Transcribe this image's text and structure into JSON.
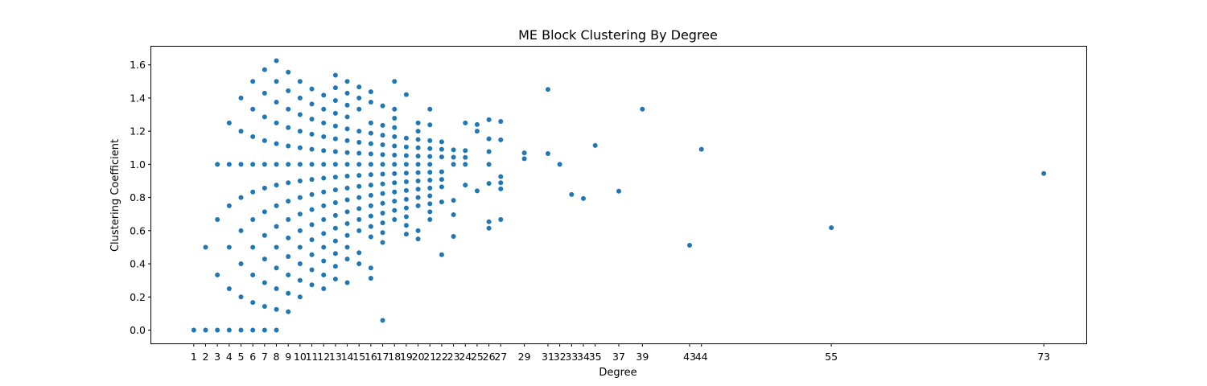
{
  "chart_data": {
    "type": "scatter",
    "title": "ME Block Clustering By Degree",
    "xlabel": "Degree",
    "ylabel": "Clustering Coefficient",
    "xlim": [
      -2.6,
      76.6
    ],
    "ylim": [
      -0.08,
      1.71
    ],
    "grid": false,
    "legend": "none",
    "marker_color": "#1f77b4",
    "xticks": [
      "1",
      "2",
      "3",
      "4",
      "5",
      "6",
      "7",
      "8",
      "9",
      "10",
      "11",
      "12",
      "13",
      "14",
      "15",
      "16",
      "17",
      "18",
      "19",
      "20",
      "21",
      "22",
      "23",
      "24",
      "25",
      "26",
      "27",
      "29",
      "31",
      "32",
      "33",
      "34",
      "35",
      "37",
      "39",
      "43",
      "44",
      "55",
      "73"
    ],
    "yticks": [
      "0.0",
      "0.2",
      "0.4",
      "0.6",
      "0.8",
      "1.0",
      "1.2",
      "1.4",
      "1.6"
    ],
    "points": [
      {
        "degree": 1,
        "y": [
          0
        ]
      },
      {
        "degree": 2,
        "y": [
          0,
          0.5
        ]
      },
      {
        "degree": 3,
        "y": [
          0,
          0.333,
          0.667,
          1
        ]
      },
      {
        "degree": 4,
        "y": [
          0,
          0.25,
          0.5,
          0.75,
          1,
          1.25
        ]
      },
      {
        "degree": 5,
        "y": [
          0,
          0.2,
          0.4,
          0.6,
          0.8,
          1,
          1.2,
          1.4
        ]
      },
      {
        "degree": 6,
        "y": [
          0,
          0.167,
          0.333,
          0.5,
          0.667,
          0.833,
          1,
          1.167,
          1.333,
          1.5
        ]
      },
      {
        "degree": 7,
        "y": [
          0,
          0.143,
          0.286,
          0.429,
          0.571,
          0.714,
          0.857,
          1,
          1.143,
          1.286,
          1.429,
          1.571
        ]
      },
      {
        "degree": 8,
        "y": [
          0,
          0.125,
          0.25,
          0.375,
          0.5,
          0.625,
          0.75,
          0.875,
          1,
          1.125,
          1.25,
          1.375,
          1.5,
          1.625
        ]
      },
      {
        "degree": 9,
        "y": [
          0.111,
          0.222,
          0.333,
          0.444,
          0.556,
          0.667,
          0.778,
          0.889,
          1,
          1.111,
          1.222,
          1.333,
          1.444,
          1.556
        ]
      },
      {
        "degree": 10,
        "y": [
          0.2,
          0.3,
          0.4,
          0.5,
          0.6,
          0.7,
          0.8,
          0.9,
          1,
          1.1,
          1.2,
          1.3,
          1.4,
          1.5
        ]
      },
      {
        "degree": 11,
        "y": [
          0.273,
          0.364,
          0.455,
          0.545,
          0.636,
          0.727,
          0.818,
          0.909,
          1,
          1.091,
          1.182,
          1.273,
          1.364,
          1.455
        ]
      },
      {
        "degree": 12,
        "y": [
          0.25,
          0.333,
          0.417,
          0.5,
          0.583,
          0.667,
          0.75,
          0.833,
          0.917,
          1,
          1.083,
          1.167,
          1.25,
          1.333,
          1.417
        ]
      },
      {
        "degree": 13,
        "y": [
          0.308,
          0.385,
          0.462,
          0.538,
          0.615,
          0.692,
          0.769,
          0.846,
          0.923,
          1,
          1.077,
          1.154,
          1.231,
          1.308,
          1.385,
          1.462,
          1.538
        ]
      },
      {
        "degree": 14,
        "y": [
          0.286,
          0.429,
          0.5,
          0.571,
          0.643,
          0.714,
          0.786,
          0.857,
          0.929,
          1,
          1.071,
          1.143,
          1.214,
          1.286,
          1.357,
          1.429,
          1.5
        ]
      },
      {
        "degree": 15,
        "y": [
          0.4,
          0.467,
          0.6,
          0.667,
          0.733,
          0.8,
          0.867,
          0.933,
          1,
          1.067,
          1.133,
          1.2,
          1.333,
          1.4,
          1.467
        ]
      },
      {
        "degree": 16,
        "y": [
          0.313,
          0.375,
          0.563,
          0.625,
          0.688,
          0.75,
          0.813,
          0.875,
          0.938,
          1,
          1.063,
          1.125,
          1.188,
          1.25,
          1.375,
          1.438
        ]
      },
      {
        "degree": 17,
        "y": [
          0.059,
          0.529,
          0.588,
          0.647,
          0.706,
          0.765,
          0.824,
          0.882,
          0.941,
          1,
          1.059,
          1.118,
          1.176,
          1.235,
          1.353
        ]
      },
      {
        "degree": 18,
        "y": [
          0.667,
          0.722,
          0.778,
          0.833,
          0.889,
          0.944,
          1,
          1.056,
          1.111,
          1.167,
          1.222,
          1.278,
          1.333,
          1.5
        ]
      },
      {
        "degree": 19,
        "y": [
          0.579,
          0.632,
          0.684,
          0.737,
          0.789,
          0.842,
          0.895,
          0.947,
          1,
          1.053,
          1.105,
          1.158,
          1.421
        ]
      },
      {
        "degree": 20,
        "y": [
          0.55,
          0.6,
          0.75,
          0.8,
          0.85,
          0.9,
          0.95,
          1,
          1.05,
          1.1,
          1.15,
          1.2,
          1.25
        ]
      },
      {
        "degree": 21,
        "y": [
          0.667,
          0.714,
          0.762,
          0.81,
          0.857,
          0.905,
          0.952,
          1,
          1.048,
          1.095,
          1.143,
          1.238,
          1.333
        ]
      },
      {
        "degree": 22,
        "y": [
          0.455,
          0.773,
          0.864,
          0.909,
          0.955,
          1.045,
          1.091,
          1.136
        ]
      },
      {
        "degree": 23,
        "y": [
          0.565,
          0.696,
          0.783,
          1,
          1.043,
          1.087
        ]
      },
      {
        "degree": 24,
        "y": [
          0.875,
          1,
          1.042,
          1.083,
          1.25
        ]
      },
      {
        "degree": 25,
        "y": [
          0.84,
          1.2,
          1.24
        ]
      },
      {
        "degree": 26,
        "y": [
          0.615,
          0.654,
          0.885,
          1,
          1.077,
          1.154,
          1.269
        ]
      },
      {
        "degree": 27,
        "y": [
          0.667,
          0.852,
          0.889,
          0.926,
          1.148,
          1.259
        ]
      },
      {
        "degree": 29,
        "y": [
          1.034,
          1.069
        ]
      },
      {
        "degree": 31,
        "y": [
          1.065,
          1.452
        ]
      },
      {
        "degree": 32,
        "y": [
          1
        ]
      },
      {
        "degree": 33,
        "y": [
          0.818
        ]
      },
      {
        "degree": 34,
        "y": [
          0.794
        ]
      },
      {
        "degree": 35,
        "y": [
          1.114
        ]
      },
      {
        "degree": 37,
        "y": [
          0.838
        ]
      },
      {
        "degree": 39,
        "y": [
          1.333
        ]
      },
      {
        "degree": 43,
        "y": [
          0.512
        ]
      },
      {
        "degree": 44,
        "y": [
          1.091
        ]
      },
      {
        "degree": 55,
        "y": [
          0.618
        ]
      },
      {
        "degree": 73,
        "y": [
          0.945
        ]
      }
    ]
  }
}
